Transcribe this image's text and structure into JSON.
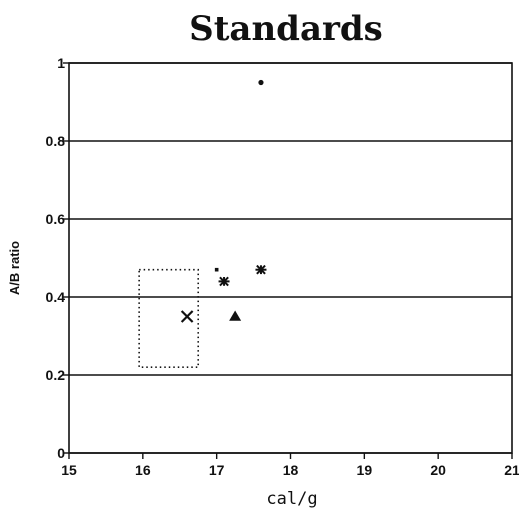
{
  "chart_data": {
    "type": "scatter",
    "title": "Standards",
    "xlabel": "cal/g",
    "ylabel": "A/B ratio",
    "xlim": [
      15,
      21
    ],
    "ylim": [
      0,
      1
    ],
    "xticks": [
      "15",
      "16",
      "17",
      "18",
      "19",
      "20",
      "21"
    ],
    "yticks": [
      "0",
      "0.2",
      "0.4",
      "0.6",
      "0.8",
      "1"
    ],
    "grid": "horizontal",
    "series": [
      {
        "marker": "dot",
        "points": [
          [
            17.6,
            0.95
          ]
        ]
      },
      {
        "marker": "small-dot",
        "points": [
          [
            17.0,
            0.47
          ]
        ]
      },
      {
        "marker": "asterisk",
        "points": [
          [
            17.1,
            0.44
          ],
          [
            17.6,
            0.47
          ]
        ]
      },
      {
        "marker": "x",
        "points": [
          [
            16.6,
            0.35
          ]
        ]
      },
      {
        "marker": "triangle",
        "points": [
          [
            17.25,
            0.35
          ]
        ]
      }
    ],
    "region": {
      "style": "dotted-box",
      "x": [
        15.95,
        16.75
      ],
      "y": [
        0.22,
        0.47
      ]
    }
  }
}
